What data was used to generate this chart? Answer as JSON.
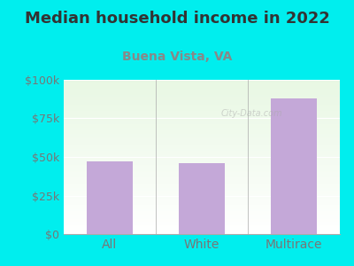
{
  "title": "Median household income in 2022",
  "subtitle": "Buena Vista, VA",
  "categories": [
    "All",
    "White",
    "Multirace"
  ],
  "values": [
    47000,
    46000,
    88000
  ],
  "bar_color": "#C4A8D8",
  "ylim": [
    0,
    100000
  ],
  "yticks": [
    0,
    25000,
    50000,
    75000,
    100000
  ],
  "ytick_labels": [
    "$0",
    "$25k",
    "$50k",
    "$75k",
    "$100k"
  ],
  "background_color": "#00EEEE",
  "title_color": "#333333",
  "subtitle_color": "#888888",
  "axis_label_color": "#777777",
  "watermark": "City-Data.com",
  "title_fontsize": 13,
  "subtitle_fontsize": 10,
  "tick_fontsize": 9,
  "cat_fontsize": 10,
  "divider_color": "#aaaaaa",
  "grid_color": "#cccccc"
}
